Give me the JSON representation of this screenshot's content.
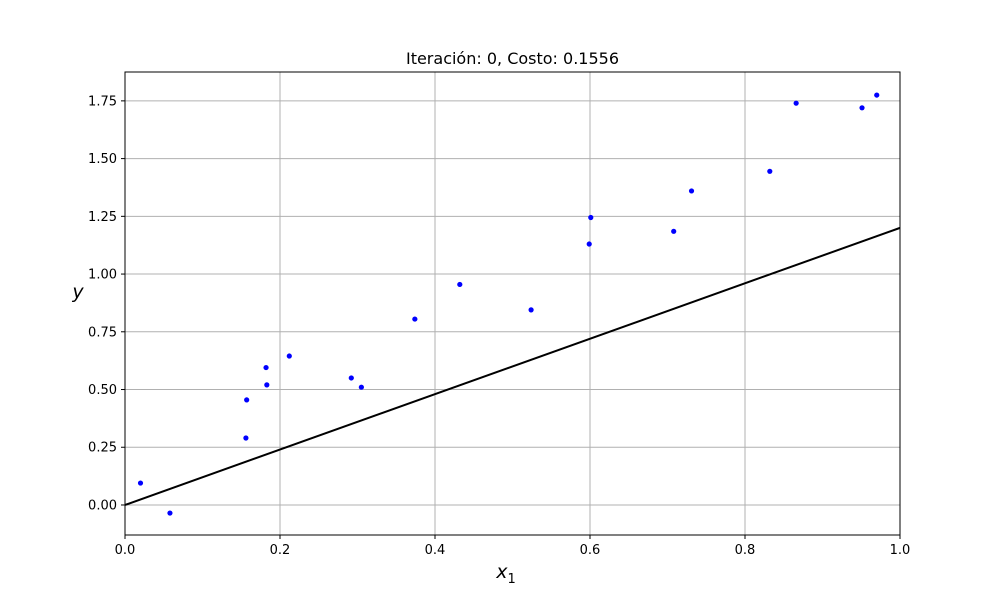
{
  "chart_data": {
    "type": "scatter",
    "title": "Iteración: 0, Costo: 0.1556",
    "xlabel": "x",
    "xlabel_sub": "1",
    "ylabel": "y",
    "xlim": [
      0.0,
      1.0
    ],
    "ylim": [
      -0.13,
      1.875
    ],
    "grid": true,
    "xticks": [
      0.0,
      0.2,
      0.4,
      0.6,
      0.8,
      1.0
    ],
    "xtick_labels": [
      "0.0",
      "0.2",
      "0.4",
      "0.6",
      "0.8",
      "1.0"
    ],
    "yticks": [
      0.0,
      0.25,
      0.5,
      0.75,
      1.0,
      1.25,
      1.5,
      1.75
    ],
    "ytick_labels": [
      "0.00",
      "0.25",
      "0.50",
      "0.75",
      "1.00",
      "1.25",
      "1.50",
      "1.75"
    ],
    "points": {
      "color": "#0000ff",
      "x": [
        0.02,
        0.058,
        0.156,
        0.157,
        0.182,
        0.183,
        0.212,
        0.292,
        0.305,
        0.374,
        0.432,
        0.524,
        0.599,
        0.601,
        0.708,
        0.731,
        0.832,
        0.866,
        0.951,
        0.97
      ],
      "y": [
        0.095,
        -0.035,
        0.29,
        0.455,
        0.595,
        0.52,
        0.645,
        0.55,
        0.51,
        0.805,
        0.955,
        0.845,
        1.13,
        1.245,
        1.185,
        1.36,
        1.445,
        1.74,
        1.72,
        1.775
      ]
    },
    "line": {
      "color": "#000000",
      "x": [
        0.0,
        1.0
      ],
      "y": [
        0.0,
        1.2
      ]
    }
  }
}
